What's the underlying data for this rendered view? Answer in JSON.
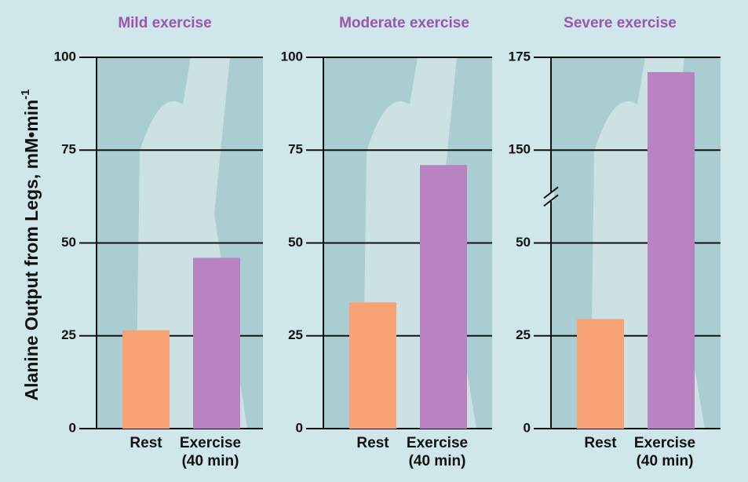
{
  "chart_data": [
    {
      "type": "bar",
      "title": "Mild exercise",
      "y_label": "Alanine Output from Legs, mM•min",
      "y_label_superscript": "-1",
      "categories": [
        "Rest",
        "Exercise (40 min)"
      ],
      "values": [
        26.5,
        46
      ],
      "colors": [
        "#f7a274",
        "#b983c2"
      ],
      "ylim": [
        0,
        100
      ],
      "yticks": [
        0,
        25,
        50,
        75,
        100
      ],
      "grid": true,
      "axis_break": false
    },
    {
      "type": "bar",
      "title": "Moderate exercise",
      "categories": [
        "Rest",
        "Exercise (40 min)"
      ],
      "values": [
        34,
        71
      ],
      "colors": [
        "#f7a274",
        "#b983c2"
      ],
      "ylim": [
        0,
        100
      ],
      "yticks": [
        0,
        25,
        50,
        75,
        100
      ],
      "grid": true,
      "axis_break": false
    },
    {
      "type": "bar",
      "title": "Severe exercise",
      "categories": [
        "Rest",
        "Exercise (40 min)"
      ],
      "values": [
        29.5,
        171
      ],
      "colors": [
        "#f7a274",
        "#b983c2"
      ],
      "ylim": [
        0,
        175
      ],
      "yticks": [
        0,
        25,
        50,
        150,
        175
      ],
      "grid": true,
      "axis_break": true
    }
  ]
}
